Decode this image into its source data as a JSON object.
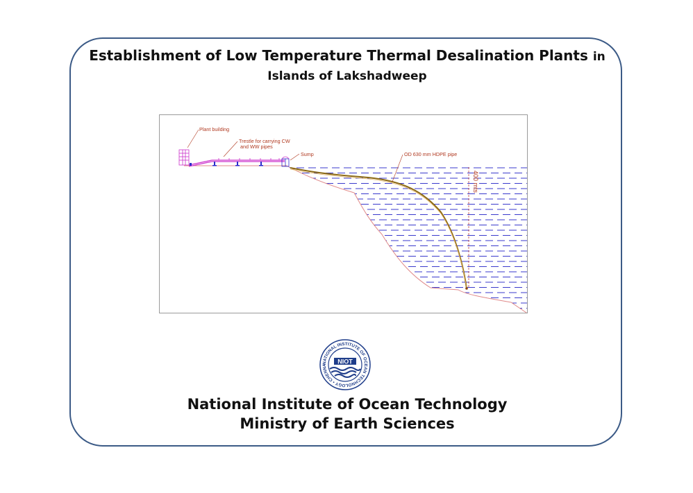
{
  "title": {
    "line1_main": "Establishment of Low Temperature Thermal Desalination Plants",
    "line1_suffix": "in",
    "line2": "Islands of Lakshadweep"
  },
  "diagram": {
    "labels": {
      "plant_building": "Plant building",
      "trestle_line1": "Trestle for carrying CW",
      "trestle_line2": "and WW pipes",
      "sump": "Sump",
      "pipe": "OD 630 mm HDPE pipe",
      "depth": "400 mts"
    },
    "colors": {
      "water_dash": "#3a3acc",
      "seabed": "#e08a8a",
      "pipe": "#8b6914",
      "structure": "#cc33cc",
      "label": "#b0381f"
    }
  },
  "logo": {
    "center_text": "NIOT",
    "ring_text": "NATIONAL INSTITUTE OF OCEAN TECHNOLOGY • CHENNAI •"
  },
  "organization": {
    "line1": "National Institute of Ocean Technology",
    "line2": "Ministry of Earth Sciences"
  }
}
